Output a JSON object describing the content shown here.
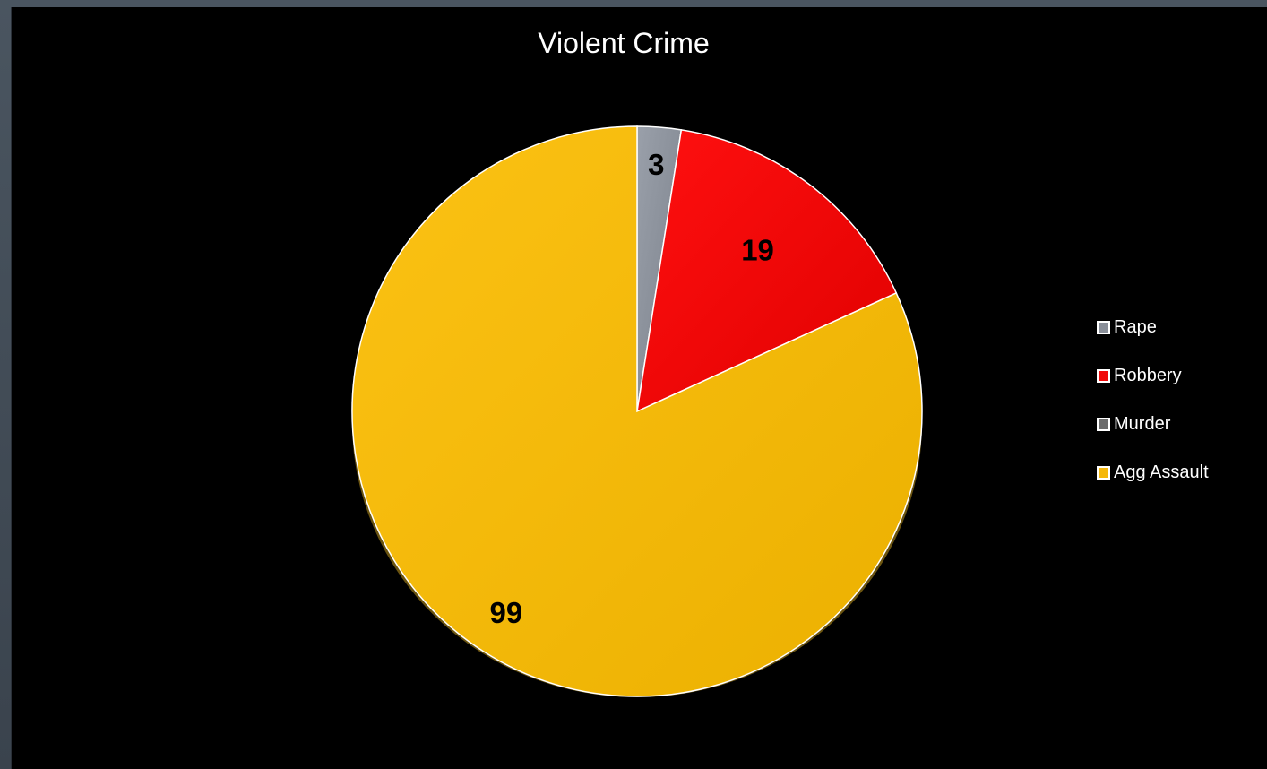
{
  "chart_data": {
    "type": "pie",
    "title": "Violent Crime",
    "categories": [
      "Rape",
      "Robbery",
      "Murder",
      "Agg Assault"
    ],
    "values": [
      3,
      19,
      0,
      99
    ],
    "labels_shown": [
      "3",
      "19",
      "",
      "99"
    ],
    "colors": [
      "#8a8f99",
      "#f00a0a",
      "#6b6b6b",
      "#f5b80c"
    ],
    "legend_position": "right",
    "start_angle_deg": 0,
    "direction": "clockwise",
    "background": "#000000"
  }
}
